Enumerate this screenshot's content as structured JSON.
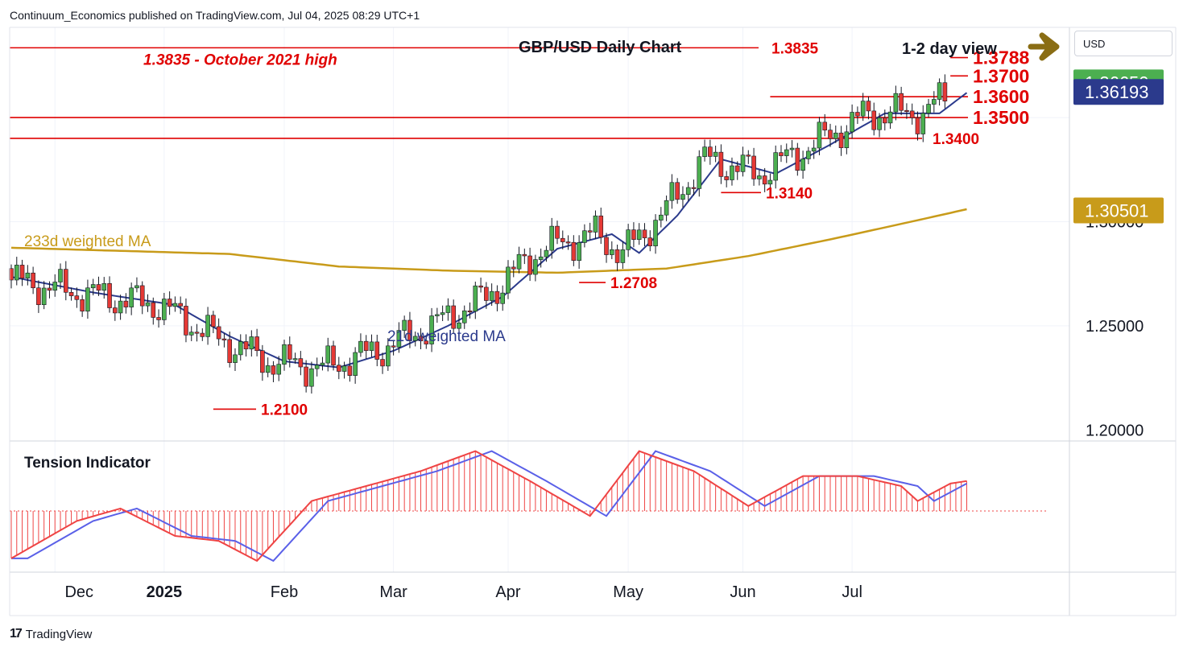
{
  "header": {
    "published": "Continuum_Economics published on TradingView.com, Jul 04, 2025 08:29 UTC+1"
  },
  "currency_button": {
    "label": "USD"
  },
  "footer": {
    "brand": "TradingView",
    "logo_mark": "17"
  },
  "chart_data": {
    "type": "candlestick",
    "title": "GBP/USD Daily Chart",
    "view_label": "1-2 day view",
    "view_direction": "up",
    "arrow_color": "#8a6d14",
    "colors": {
      "up": "#4caf50",
      "down": "#e53935",
      "candle_border": "#131722",
      "level_line": "#e00000",
      "ma21": "#2b3a8c",
      "ma233": "#c89b1a",
      "tension_red": "#ef4444",
      "tension_blue": "#5a60e8",
      "label_text": "#e00000"
    },
    "x_axis": {
      "ticks": [
        "Dec",
        "2025",
        "Feb",
        "Mar",
        "Apr",
        "May",
        "Jun",
        "Jul"
      ]
    },
    "y_axis": {
      "ticks": [
        "1.25000",
        "1.20000"
      ],
      "range": [
        1.1955,
        1.3933
      ]
    },
    "price_badges": [
      {
        "label": "1.36650",
        "value": 1.3665,
        "color": "#4caf50"
      },
      {
        "label": "1.36193",
        "value": 1.36193,
        "color": "#2b3a8c"
      },
      {
        "label": "1.30501",
        "value": 1.30501,
        "color": "#c89b1a"
      }
    ],
    "hidden_tick": "1.30000",
    "levels": [
      {
        "value": 1.3835,
        "label": "1.3835",
        "note": "1.3835 - October 2021 high",
        "start": "full"
      },
      {
        "value": 1.3788,
        "label": "1.3788",
        "start": "Jul"
      },
      {
        "value": 1.37,
        "label": "1.3700",
        "start": "Jul"
      },
      {
        "value": 1.36,
        "label": "1.3600",
        "start": "late-May"
      },
      {
        "value": 1.35,
        "label": "1.3500",
        "start": "full"
      },
      {
        "value": 1.34,
        "label": "1.3400",
        "start": "full"
      },
      {
        "value": 1.314,
        "label": "1.3140",
        "start": "May low"
      },
      {
        "value": 1.2708,
        "label": "1.2708",
        "start": "Apr low"
      },
      {
        "value": 1.21,
        "label": "1.2100",
        "start": "Jan low"
      }
    ],
    "indicator_labels": {
      "ma233": "233d weighted MA",
      "ma21": "21d weighted MA",
      "tension": "Tension Indicator"
    },
    "ma233_key": [
      [
        0,
        1.2875
      ],
      [
        40,
        1.2845
      ],
      [
        60,
        1.2785
      ],
      [
        80,
        1.2765
      ],
      [
        100,
        1.2755
      ],
      [
        120,
        1.2775
      ],
      [
        135,
        1.2835
      ],
      [
        150,
        1.2915
      ],
      [
        165,
        1.3001
      ],
      [
        175,
        1.306
      ]
    ],
    "ma21_key": [
      [
        0,
        1.2735
      ],
      [
        15,
        1.266
      ],
      [
        30,
        1.26
      ],
      [
        40,
        1.245
      ],
      [
        50,
        1.233
      ],
      [
        60,
        1.23
      ],
      [
        70,
        1.238
      ],
      [
        80,
        1.25
      ],
      [
        90,
        1.264
      ],
      [
        100,
        1.287
      ],
      [
        110,
        1.294
      ],
      [
        115,
        1.285
      ],
      [
        122,
        1.303
      ],
      [
        130,
        1.33
      ],
      [
        140,
        1.323
      ],
      [
        150,
        1.337
      ],
      [
        160,
        1.352
      ],
      [
        170,
        1.352
      ],
      [
        175,
        1.3619
      ]
    ],
    "tension_key": [
      [
        0,
        -0.95
      ],
      [
        12,
        -0.2
      ],
      [
        20,
        0.05
      ],
      [
        30,
        -0.5
      ],
      [
        38,
        -0.6
      ],
      [
        45,
        -1.0
      ],
      [
        55,
        0.2
      ],
      [
        65,
        0.5
      ],
      [
        75,
        0.8
      ],
      [
        85,
        1.2
      ],
      [
        95,
        0.6
      ],
      [
        106,
        -0.1
      ],
      [
        115,
        1.2
      ],
      [
        125,
        0.8
      ],
      [
        135,
        0.1
      ],
      [
        145,
        0.7
      ],
      [
        155,
        0.7
      ],
      [
        163,
        0.5
      ],
      [
        166,
        0.2
      ],
      [
        172,
        0.55
      ],
      [
        175,
        0.6
      ]
    ]
  }
}
